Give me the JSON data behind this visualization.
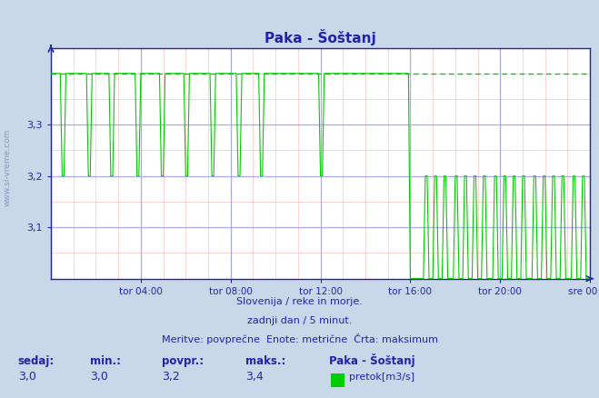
{
  "title": "Paka - Šoštanj",
  "outer_bg": "#c8d8e8",
  "plot_bg": "#ffffff",
  "line_color": "#00cc00",
  "max_line_color": "#00cc00",
  "grid_major_color": "#aaaaee",
  "grid_minor_color": "#ffcccc",
  "axis_color": "#2222aa",
  "text_color": "#2222aa",
  "tick_label_color": "#2222aa",
  "ylim_min": 3.0,
  "ylim_max": 3.45,
  "ytick_vals": [
    3.1,
    3.2,
    3.3
  ],
  "ytick_labels": [
    "3,1",
    "3,2",
    "3,3"
  ],
  "xtick_positions": [
    240,
    480,
    720,
    960,
    1200,
    1440
  ],
  "xtick_labels": [
    "tor 04:00",
    "tor 08:00",
    "tor 12:00",
    "tor 16:00",
    "tor 20:00",
    "sre 00:00"
  ],
  "total_minutes": 1440,
  "max_value": 3.4,
  "footer1": "Slovenija / reke in morje.",
  "footer2": "zadnji dan / 5 minut.",
  "footer3": "Meritve: povprečne  Enote: metrične  Črta: maksimum",
  "stat_sedaj": "3,0",
  "stat_min": "3,0",
  "stat_povpr": "3,2",
  "stat_maks": "3,4",
  "legend_name": "Paka - Šoštanj",
  "legend_unit": "pretok[m3/s]",
  "legend_color": "#00cc00",
  "watermark": "www.si-vreme.com",
  "watermark_color": "#8899bb"
}
